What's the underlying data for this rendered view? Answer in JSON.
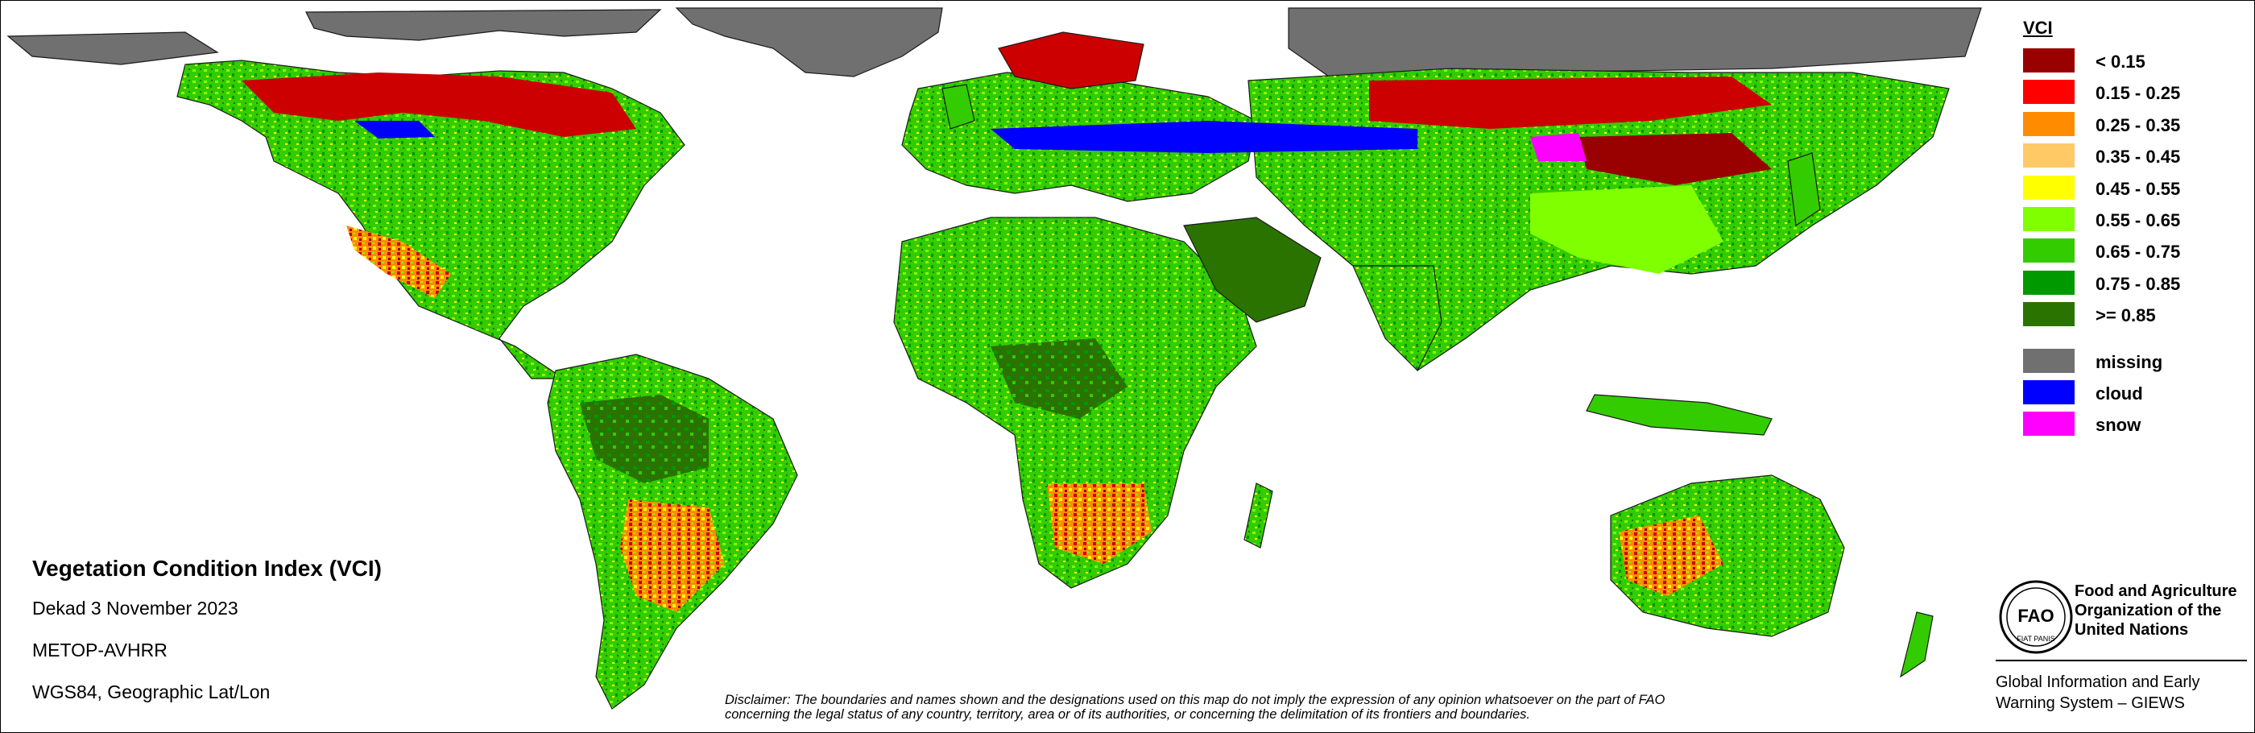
{
  "legend": {
    "title": "VCI",
    "classes": [
      {
        "label": "< 0.15",
        "color": "#990000"
      },
      {
        "label": "0.15 - 0.25",
        "color": "#ff0000"
      },
      {
        "label": "0.25 - 0.35",
        "color": "#ff8c00"
      },
      {
        "label": "0.35 - 0.45",
        "color": "#ffc966"
      },
      {
        "label": "0.45 - 0.55",
        "color": "#ffff00"
      },
      {
        "label": "0.55 - 0.65",
        "color": "#80ff00"
      },
      {
        "label": "0.65 - 0.75",
        "color": "#33cc00"
      },
      {
        "label": "0.75 - 0.85",
        "color": "#009900"
      },
      {
        "label": ">= 0.85",
        "color": "#2a7300"
      }
    ],
    "status": [
      {
        "label": "missing",
        "color": "#707070"
      },
      {
        "label": "cloud",
        "color": "#0000ff"
      },
      {
        "label": "snow",
        "color": "#ff00ff"
      }
    ]
  },
  "info": {
    "title": "Vegetation Condition Index (VCI)",
    "period": "Dekad 3 November 2023",
    "sensor": "METOP-AVHRR",
    "projection": "WGS84, Geographic Lat/Lon"
  },
  "disclaimer": {
    "line1": "Disclaimer: The boundaries and names shown and the designations used on this map do not imply the expression of any opinion whatsoever on the part of FAO",
    "line2": "concerning the legal status of any country, territory, area or of its authorities, or concerning the delimitation of its frontiers and boundaries."
  },
  "fao": {
    "logo_letters": "FAO",
    "logo_motto": "FIAT PANIS",
    "name_line1": "Food and Agriculture",
    "name_line2": "Organization of the",
    "name_line3": "United Nations",
    "giews_line1": "Global Information and Early",
    "giews_line2": "Warning System – GIEWS"
  },
  "map_colors": {
    "ocean": "#ffffff",
    "land_base": "#33cc00",
    "missing": "#707070",
    "outline": "#1a1a1a"
  }
}
